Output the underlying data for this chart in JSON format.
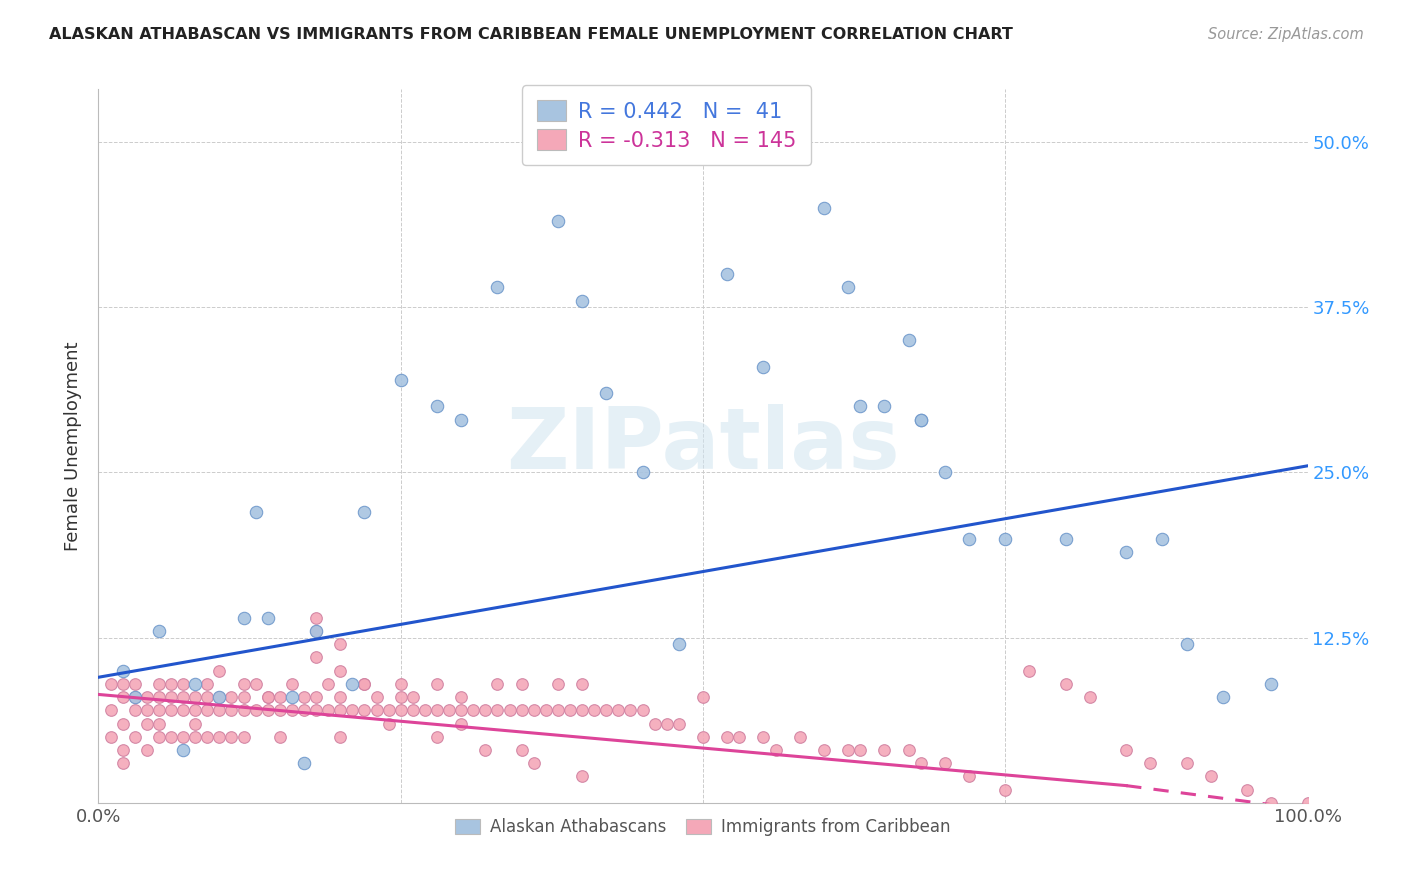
{
  "title": "ALASKAN ATHABASCAN VS IMMIGRANTS FROM CARIBBEAN FEMALE UNEMPLOYMENT CORRELATION CHART",
  "source": "Source: ZipAtlas.com",
  "ylabel": "Female Unemployment",
  "watermark": "ZIPatlas",
  "blue_R": 0.442,
  "blue_N": 41,
  "pink_R": -0.313,
  "pink_N": 145,
  "blue_color": "#a8c4e0",
  "pink_color": "#f4a8b8",
  "blue_line_color": "#2255cc",
  "pink_line_color": "#dd4499",
  "right_axis_color": "#3399ff",
  "legend_R_color_blue": "#4477dd",
  "legend_R_color_pink": "#cc3399",
  "xlim": [
    0.0,
    1.0
  ],
  "ylim": [
    0.0,
    0.54
  ],
  "blue_scatter_x": [
    0.02,
    0.03,
    0.05,
    0.07,
    0.08,
    0.1,
    0.12,
    0.13,
    0.14,
    0.16,
    0.17,
    0.18,
    0.21,
    0.22,
    0.25,
    0.28,
    0.3,
    0.33,
    0.38,
    0.4,
    0.42,
    0.45,
    0.48,
    0.52,
    0.55,
    0.6,
    0.62,
    0.63,
    0.65,
    0.67,
    0.68,
    0.68,
    0.7,
    0.72,
    0.75,
    0.8,
    0.85,
    0.88,
    0.9,
    0.93,
    0.97
  ],
  "blue_scatter_y": [
    0.1,
    0.08,
    0.13,
    0.04,
    0.09,
    0.08,
    0.14,
    0.22,
    0.14,
    0.08,
    0.03,
    0.13,
    0.09,
    0.22,
    0.32,
    0.3,
    0.29,
    0.39,
    0.44,
    0.38,
    0.31,
    0.25,
    0.12,
    0.4,
    0.33,
    0.45,
    0.39,
    0.3,
    0.3,
    0.35,
    0.29,
    0.29,
    0.25,
    0.2,
    0.2,
    0.2,
    0.19,
    0.2,
    0.12,
    0.08,
    0.09
  ],
  "pink_scatter_x": [
    0.01,
    0.01,
    0.01,
    0.02,
    0.02,
    0.02,
    0.02,
    0.02,
    0.03,
    0.03,
    0.03,
    0.03,
    0.04,
    0.04,
    0.04,
    0.04,
    0.05,
    0.05,
    0.05,
    0.05,
    0.05,
    0.06,
    0.06,
    0.06,
    0.06,
    0.07,
    0.07,
    0.07,
    0.07,
    0.08,
    0.08,
    0.08,
    0.08,
    0.09,
    0.09,
    0.09,
    0.09,
    0.1,
    0.1,
    0.1,
    0.11,
    0.11,
    0.11,
    0.12,
    0.12,
    0.12,
    0.13,
    0.13,
    0.14,
    0.14,
    0.15,
    0.15,
    0.15,
    0.16,
    0.16,
    0.17,
    0.17,
    0.18,
    0.18,
    0.18,
    0.19,
    0.19,
    0.2,
    0.2,
    0.2,
    0.21,
    0.22,
    0.22,
    0.23,
    0.23,
    0.24,
    0.25,
    0.25,
    0.26,
    0.26,
    0.27,
    0.28,
    0.28,
    0.29,
    0.3,
    0.3,
    0.31,
    0.32,
    0.33,
    0.33,
    0.34,
    0.35,
    0.35,
    0.36,
    0.37,
    0.38,
    0.38,
    0.39,
    0.4,
    0.4,
    0.41,
    0.42,
    0.43,
    0.44,
    0.45,
    0.46,
    0.47,
    0.48,
    0.5,
    0.5,
    0.52,
    0.53,
    0.55,
    0.56,
    0.58,
    0.6,
    0.62,
    0.63,
    0.65,
    0.67,
    0.68,
    0.7,
    0.72,
    0.75,
    0.77,
    0.8,
    0.82,
    0.85,
    0.87,
    0.9,
    0.92,
    0.95,
    0.97,
    1.0,
    0.18,
    0.2,
    0.22,
    0.24,
    0.28,
    0.32,
    0.36,
    0.4,
    0.18,
    0.2,
    0.25,
    0.3,
    0.35,
    0.1,
    0.12,
    0.14
  ],
  "pink_scatter_y": [
    0.07,
    0.05,
    0.09,
    0.08,
    0.06,
    0.04,
    0.03,
    0.09,
    0.08,
    0.07,
    0.05,
    0.09,
    0.07,
    0.08,
    0.06,
    0.04,
    0.07,
    0.08,
    0.05,
    0.06,
    0.09,
    0.07,
    0.08,
    0.05,
    0.09,
    0.07,
    0.08,
    0.05,
    0.09,
    0.07,
    0.08,
    0.05,
    0.06,
    0.07,
    0.08,
    0.05,
    0.09,
    0.07,
    0.08,
    0.05,
    0.07,
    0.08,
    0.05,
    0.07,
    0.08,
    0.05,
    0.07,
    0.09,
    0.07,
    0.08,
    0.07,
    0.08,
    0.05,
    0.07,
    0.09,
    0.07,
    0.08,
    0.13,
    0.07,
    0.08,
    0.07,
    0.09,
    0.07,
    0.08,
    0.05,
    0.07,
    0.07,
    0.09,
    0.07,
    0.08,
    0.07,
    0.07,
    0.09,
    0.07,
    0.08,
    0.07,
    0.07,
    0.09,
    0.07,
    0.07,
    0.08,
    0.07,
    0.07,
    0.07,
    0.09,
    0.07,
    0.07,
    0.09,
    0.07,
    0.07,
    0.07,
    0.09,
    0.07,
    0.07,
    0.09,
    0.07,
    0.07,
    0.07,
    0.07,
    0.07,
    0.06,
    0.06,
    0.06,
    0.05,
    0.08,
    0.05,
    0.05,
    0.05,
    0.04,
    0.05,
    0.04,
    0.04,
    0.04,
    0.04,
    0.04,
    0.03,
    0.03,
    0.02,
    0.01,
    0.1,
    0.09,
    0.08,
    0.04,
    0.03,
    0.03,
    0.02,
    0.01,
    0.0,
    0.0,
    0.11,
    0.1,
    0.09,
    0.06,
    0.05,
    0.04,
    0.03,
    0.02,
    0.14,
    0.12,
    0.08,
    0.06,
    0.04,
    0.1,
    0.09,
    0.08
  ],
  "ytick_vals": [
    0.0,
    0.125,
    0.25,
    0.375,
    0.5
  ],
  "ytick_labels_right": [
    "",
    "12.5%",
    "25.0%",
    "37.5%",
    "50.0%"
  ],
  "xtick_vals": [
    0.0,
    0.25,
    0.5,
    0.75,
    1.0
  ],
  "xtick_labels": [
    "0.0%",
    "",
    "",
    "",
    "100.0%"
  ],
  "blue_line_x": [
    0.0,
    1.0
  ],
  "blue_line_y": [
    0.095,
    0.255
  ],
  "pink_line_x0": 0.0,
  "pink_line_x1": 0.85,
  "pink_line_x2": 1.0,
  "pink_line_y0": 0.082,
  "pink_line_y1": 0.013,
  "pink_line_y2": -0.005,
  "grid_color": "#cccccc",
  "bg_color": "#ffffff"
}
